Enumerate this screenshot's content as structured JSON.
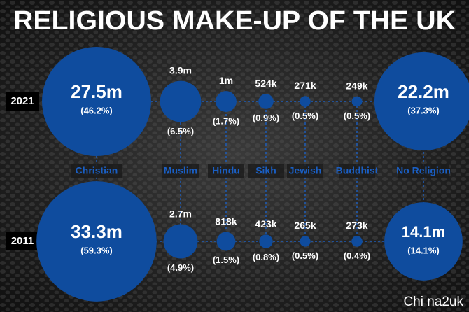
{
  "chart_data": {
    "type": "bubble",
    "title": "RELIGIOUS MAKE-UP OF THE UK",
    "categories": [
      "Christian",
      "Muslim",
      "Hindu",
      "Sikh",
      "Jewish",
      "Buddhist",
      "No Religion"
    ],
    "color": "#0f4c9e",
    "series": [
      {
        "name": "2021",
        "values": [
          27500000,
          3900000,
          1000000,
          524000,
          271000,
          249000,
          22200000
        ],
        "value_labels": [
          "27.5m",
          "3.9m",
          "1m",
          "524k",
          "271k",
          "249k",
          "22.2m"
        ],
        "shares": [
          46.2,
          6.5,
          1.7,
          0.9,
          0.5,
          0.5,
          37.3
        ],
        "share_labels": [
          "(46.2%)",
          "(6.5%)",
          "(1.7%)",
          "(0.9%)",
          "(0.5%)",
          "(0.5%)",
          "(37.3%)"
        ]
      },
      {
        "name": "2011",
        "values": [
          33300000,
          2700000,
          818000,
          423000,
          265000,
          273000,
          14100000
        ],
        "value_labels": [
          "33.3m",
          "2.7m",
          "818k",
          "423k",
          "265k",
          "273k",
          "14.1m"
        ],
        "shares": [
          59.3,
          4.9,
          1.5,
          0.8,
          0.5,
          0.4,
          14.1
        ],
        "share_labels": [
          "(59.3%)",
          "(4.9%)",
          "(1.5%)",
          "(0.8%)",
          "(0.5%)",
          "(0.4%)",
          "(14.1%)"
        ]
      }
    ],
    "watermark": "Chi na2uk"
  }
}
